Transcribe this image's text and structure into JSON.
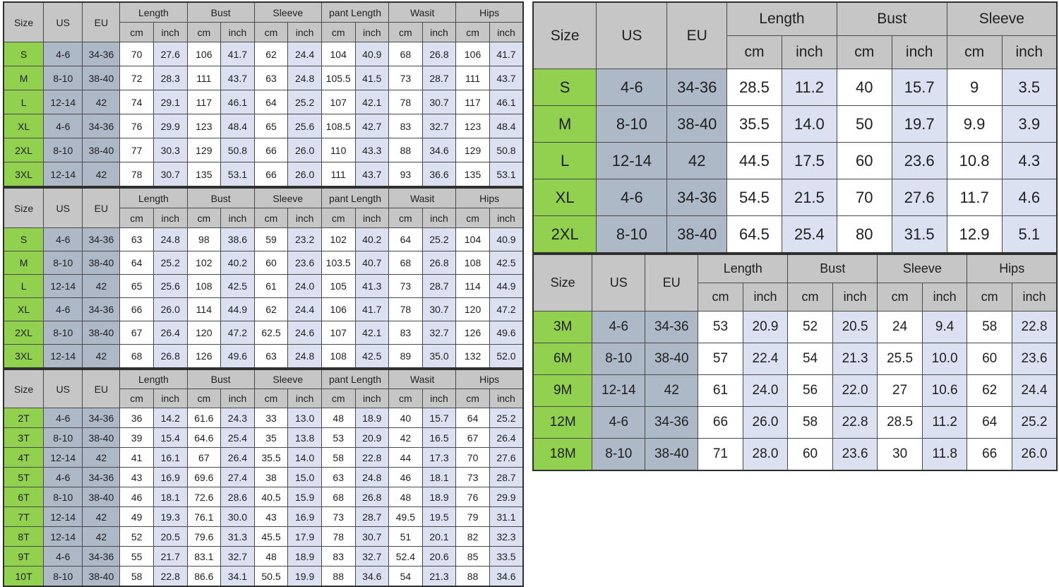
{
  "colors": {
    "header_bg": "#c6c6c6",
    "size_col_bg": "#92d050",
    "us_eu_bg": "#aeb9c8",
    "cm_col_bg": "#ffffff",
    "inch_col_bg": "#dbe1f0",
    "border": "#4a4a4a",
    "outer_border": "#2f2f2f",
    "text": "#1f1f1f"
  },
  "labels": {
    "size": "Size",
    "us": "US",
    "eu": "EU",
    "cm": "cm",
    "inch": "inch"
  },
  "chart_data": {
    "type": "table",
    "tables": [
      {
        "id": "left-top-adult",
        "columns": [
          "Length",
          "Bust",
          "Sleeve",
          "pant Length",
          "Wasit",
          "Hips"
        ],
        "rows": [
          {
            "size": "S",
            "us": "4-6",
            "eu": "34-36",
            "values": [
              "70",
              "27.6",
              "106",
              "41.7",
              "62",
              "24.4",
              "104",
              "40.9",
              "68",
              "26.8",
              "106",
              "41.7"
            ]
          },
          {
            "size": "M",
            "us": "8-10",
            "eu": "38-40",
            "values": [
              "72",
              "28.3",
              "111",
              "43.7",
              "63",
              "24.8",
              "105.5",
              "41.5",
              "73",
              "28.7",
              "111",
              "43.7"
            ]
          },
          {
            "size": "L",
            "us": "12-14",
            "eu": "42",
            "values": [
              "74",
              "29.1",
              "117",
              "46.1",
              "64",
              "25.2",
              "107",
              "42.1",
              "78",
              "30.7",
              "117",
              "46.1"
            ]
          },
          {
            "size": "XL",
            "us": "4-6",
            "eu": "34-36",
            "values": [
              "76",
              "29.9",
              "123",
              "48.4",
              "65",
              "25.6",
              "108.5",
              "42.7",
              "83",
              "32.7",
              "123",
              "48.4"
            ]
          },
          {
            "size": "2XL",
            "us": "8-10",
            "eu": "38-40",
            "values": [
              "77",
              "30.3",
              "129",
              "50.8",
              "66",
              "26.0",
              "110",
              "43.3",
              "88",
              "34.6",
              "129",
              "50.8"
            ]
          },
          {
            "size": "3XL",
            "us": "12-14",
            "eu": "42",
            "values": [
              "78",
              "30.7",
              "135",
              "53.1",
              "66",
              "26.0",
              "111",
              "43.7",
              "93",
              "36.6",
              "135",
              "53.1"
            ]
          }
        ]
      },
      {
        "id": "left-middle-adult",
        "columns": [
          "Length",
          "Bust",
          "Sleeve",
          "pant Length",
          "Wasit",
          "Hips"
        ],
        "rows": [
          {
            "size": "S",
            "us": "4-6",
            "eu": "34-36",
            "values": [
              "63",
              "24.8",
              "98",
              "38.6",
              "59",
              "23.2",
              "102",
              "40.2",
              "64",
              "25.2",
              "104",
              "40.9"
            ]
          },
          {
            "size": "M",
            "us": "8-10",
            "eu": "38-40",
            "values": [
              "64",
              "25.2",
              "102",
              "40.2",
              "60",
              "23.6",
              "103.5",
              "40.7",
              "68",
              "26.8",
              "108",
              "42.5"
            ]
          },
          {
            "size": "L",
            "us": "12-14",
            "eu": "42",
            "values": [
              "65",
              "25.6",
              "108",
              "42.5",
              "61",
              "24.0",
              "105",
              "41.3",
              "73",
              "28.7",
              "114",
              "44.9"
            ]
          },
          {
            "size": "XL",
            "us": "4-6",
            "eu": "34-36",
            "values": [
              "66",
              "26.0",
              "114",
              "44.9",
              "62",
              "24.4",
              "106",
              "41.7",
              "78",
              "30.7",
              "120",
              "47.2"
            ]
          },
          {
            "size": "2XL",
            "us": "8-10",
            "eu": "38-40",
            "values": [
              "67",
              "26.4",
              "120",
              "47.2",
              "62.5",
              "24.6",
              "107",
              "42.1",
              "83",
              "32.7",
              "126",
              "49.6"
            ]
          },
          {
            "size": "3XL",
            "us": "12-14",
            "eu": "42",
            "values": [
              "68",
              "26.8",
              "126",
              "49.6",
              "63",
              "24.8",
              "108",
              "42.5",
              "89",
              "35.0",
              "132",
              "52.0"
            ]
          }
        ]
      },
      {
        "id": "left-bottom-toddler",
        "columns": [
          "Length",
          "Bust",
          "Sleeve",
          "pant Length",
          "Wasit",
          "Hips"
        ],
        "rows": [
          {
            "size": "2T",
            "us": "4-6",
            "eu": "34-36",
            "values": [
              "36",
              "14.2",
              "61.6",
              "24.3",
              "33",
              "13.0",
              "48",
              "18.9",
              "40",
              "15.7",
              "64",
              "25.2"
            ]
          },
          {
            "size": "3T",
            "us": "8-10",
            "eu": "38-40",
            "values": [
              "39",
              "15.4",
              "64.6",
              "25.4",
              "35",
              "13.8",
              "53",
              "20.9",
              "42",
              "16.5",
              "67",
              "26.4"
            ]
          },
          {
            "size": "4T",
            "us": "12-14",
            "eu": "42",
            "values": [
              "41",
              "16.1",
              "67",
              "26.4",
              "35.5",
              "14.0",
              "58",
              "22.8",
              "44",
              "17.3",
              "70",
              "27.6"
            ]
          },
          {
            "size": "5T",
            "us": "4-6",
            "eu": "34-36",
            "values": [
              "43",
              "16.9",
              "69.6",
              "27.4",
              "38",
              "15.0",
              "63",
              "24.8",
              "46",
              "18.1",
              "73",
              "28.7"
            ]
          },
          {
            "size": "6T",
            "us": "8-10",
            "eu": "38-40",
            "values": [
              "46",
              "18.1",
              "72.6",
              "28.6",
              "40.5",
              "15.9",
              "68",
              "26.8",
              "48",
              "18.9",
              "76",
              "29.9"
            ]
          },
          {
            "size": "7T",
            "us": "12-14",
            "eu": "42",
            "values": [
              "49",
              "19.3",
              "76.1",
              "30.0",
              "43",
              "16.9",
              "73",
              "28.7",
              "49.5",
              "19.5",
              "79",
              "31.1"
            ]
          },
          {
            "size": "8T",
            "us": "12-14",
            "eu": "42",
            "values": [
              "52",
              "20.5",
              "79.6",
              "31.3",
              "45.5",
              "17.9",
              "78",
              "30.7",
              "51",
              "20.1",
              "82",
              "32.3"
            ]
          },
          {
            "size": "9T",
            "us": "4-6",
            "eu": "34-36",
            "values": [
              "55",
              "21.7",
              "83.1",
              "32.7",
              "48",
              "18.9",
              "83",
              "32.7",
              "52.4",
              "20.6",
              "85",
              "33.5"
            ]
          },
          {
            "size": "10T",
            "us": "8-10",
            "eu": "38-40",
            "values": [
              "58",
              "22.8",
              "86.6",
              "34.1",
              "50.5",
              "19.9",
              "88",
              "34.6",
              "54",
              "21.3",
              "88",
              "34.6"
            ]
          }
        ]
      },
      {
        "id": "right-top-adult",
        "columns": [
          "Length",
          "Bust",
          "Sleeve"
        ],
        "rows": [
          {
            "size": "S",
            "us": "4-6",
            "eu": "34-36",
            "values": [
              "28.5",
              "11.2",
              "40",
              "15.7",
              "9",
              "3.5"
            ]
          },
          {
            "size": "M",
            "us": "8-10",
            "eu": "38-40",
            "values": [
              "35.5",
              "14.0",
              "50",
              "19.7",
              "9.9",
              "3.9"
            ]
          },
          {
            "size": "L",
            "us": "12-14",
            "eu": "42",
            "values": [
              "44.5",
              "17.5",
              "60",
              "23.6",
              "10.8",
              "4.3"
            ]
          },
          {
            "size": "XL",
            "us": "4-6",
            "eu": "34-36",
            "values": [
              "54.5",
              "21.5",
              "70",
              "27.6",
              "11.7",
              "4.6"
            ]
          },
          {
            "size": "2XL",
            "us": "8-10",
            "eu": "38-40",
            "values": [
              "64.5",
              "25.4",
              "80",
              "31.5",
              "12.9",
              "5.1"
            ]
          }
        ]
      },
      {
        "id": "right-bottom-baby",
        "columns": [
          "Length",
          "Bust",
          "Sleeve",
          "Hips"
        ],
        "rows": [
          {
            "size": "3M",
            "us": "4-6",
            "eu": "34-36",
            "values": [
              "53",
              "20.9",
              "52",
              "20.5",
              "24",
              "9.4",
              "58",
              "22.8"
            ]
          },
          {
            "size": "6M",
            "us": "8-10",
            "eu": "38-40",
            "values": [
              "57",
              "22.4",
              "54",
              "21.3",
              "25.5",
              "10.0",
              "60",
              "23.6"
            ]
          },
          {
            "size": "9M",
            "us": "12-14",
            "eu": "42",
            "values": [
              "61",
              "24.0",
              "56",
              "22.0",
              "27",
              "10.6",
              "62",
              "24.4"
            ]
          },
          {
            "size": "12M",
            "us": "4-6",
            "eu": "34-36",
            "values": [
              "66",
              "26.0",
              "58",
              "22.8",
              "28.5",
              "11.2",
              "64",
              "25.2"
            ]
          },
          {
            "size": "18M",
            "us": "8-10",
            "eu": "38-40",
            "values": [
              "71",
              "28.0",
              "60",
              "23.6",
              "30",
              "11.8",
              "66",
              "26.0"
            ]
          }
        ]
      }
    ]
  }
}
